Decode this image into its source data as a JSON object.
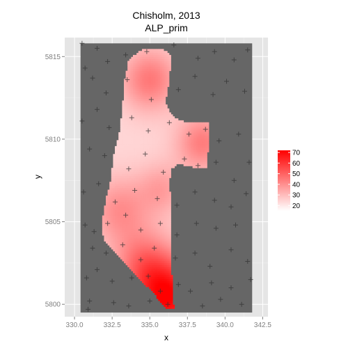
{
  "chart_data": {
    "type": "heatmap",
    "title": "Chisholm, 2013",
    "subtitle": "ALP_prim",
    "xlabel": "x",
    "ylabel": "y",
    "xlim": [
      330.0,
      342.5
    ],
    "ylim": [
      5799.5,
      5815.8
    ],
    "x_ticks": [
      330.0,
      332.5,
      335.0,
      337.5,
      340.0,
      342.5
    ],
    "x_tick_labels": [
      "330.0",
      "332.5",
      "335.0",
      "337.5",
      "340.0",
      "342.5"
    ],
    "y_ticks": [
      5800,
      5805,
      5810,
      5815
    ],
    "y_tick_labels": [
      "5800",
      "5805",
      "5810",
      "5815"
    ],
    "grid": true,
    "legend": {
      "position": "right",
      "scale_min": 15,
      "scale_max": 72,
      "breaks": [
        70,
        60,
        50,
        40,
        30,
        20
      ],
      "break_labels": [
        "70",
        "60",
        "50",
        "40",
        "30",
        "20"
      ],
      "low_color": "#ffffff",
      "high_color": "#ff0000"
    },
    "raster_background": "#666666",
    "raster_extent": {
      "x": [
        330.4,
        341.8
      ],
      "y": [
        5799.5,
        5815.8
      ]
    },
    "region_boundary": [
      [
        333.6,
        5814.8
      ],
      [
        334.0,
        5815.1
      ],
      [
        334.5,
        5815.4
      ],
      [
        335.1,
        5815.5
      ],
      [
        335.9,
        5815.4
      ],
      [
        336.4,
        5815.1
      ],
      [
        336.3,
        5813.5
      ],
      [
        336.0,
        5812.2
      ],
      [
        336.5,
        5811.4
      ],
      [
        337.1,
        5811.1
      ],
      [
        338.0,
        5811.0
      ],
      [
        338.9,
        5811.0
      ],
      [
        338.9,
        5809.8
      ],
      [
        338.8,
        5808.3
      ],
      [
        337.9,
        5808.3
      ],
      [
        336.9,
        5808.5
      ],
      [
        336.4,
        5808.2
      ],
      [
        336.3,
        5807.2
      ],
      [
        336.4,
        5806.1
      ],
      [
        336.4,
        5804.5
      ],
      [
        336.4,
        5802.8
      ],
      [
        336.5,
        5801.2
      ],
      [
        336.6,
        5799.7
      ],
      [
        336.1,
        5799.7
      ],
      [
        335.5,
        5800.4
      ],
      [
        334.8,
        5801.1
      ],
      [
        334.0,
        5801.8
      ],
      [
        333.2,
        5802.6
      ],
      [
        332.6,
        5803.2
      ],
      [
        332.0,
        5803.8
      ],
      [
        331.8,
        5804.6
      ],
      [
        331.9,
        5805.4
      ],
      [
        332.1,
        5806.4
      ],
      [
        332.4,
        5807.5
      ],
      [
        332.6,
        5809.0
      ],
      [
        333.0,
        5810.5
      ],
      [
        333.2,
        5812.0
      ],
      [
        333.3,
        5813.5
      ]
    ],
    "value_peaks": [
      {
        "x": 335.0,
        "y": 5813.6,
        "value": 45,
        "spread": 1.3
      },
      {
        "x": 338.5,
        "y": 5809.8,
        "value": 44,
        "spread": 1.2
      },
      {
        "x": 336.2,
        "y": 5800.4,
        "value": 70,
        "spread": 1.6
      },
      {
        "x": 333.0,
        "y": 5805.7,
        "value": 40,
        "spread": 1.4
      },
      {
        "x": 335.8,
        "y": 5807.0,
        "value": 36,
        "spread": 1.1
      },
      {
        "x": 334.6,
        "y": 5802.5,
        "value": 44,
        "spread": 1.4
      }
    ],
    "value_base": 24,
    "sample_points": [
      [
        330.5,
        5815.8
      ],
      [
        331.5,
        5815.5
      ],
      [
        332.2,
        5814.7
      ],
      [
        333.4,
        5815.1
      ],
      [
        334.8,
        5815.3
      ],
      [
        336.6,
        5815.7
      ],
      [
        338.2,
        5814.9
      ],
      [
        339.3,
        5815.3
      ],
      [
        340.6,
        5814.8
      ],
      [
        341.5,
        5815.4
      ],
      [
        330.7,
        5814.3
      ],
      [
        331.2,
        5813.7
      ],
      [
        332.1,
        5812.8
      ],
      [
        333.5,
        5813.6
      ],
      [
        335.1,
        5812.4
      ],
      [
        336.9,
        5813.0
      ],
      [
        338.0,
        5813.8
      ],
      [
        339.2,
        5812.7
      ],
      [
        340.1,
        5813.5
      ],
      [
        341.3,
        5812.9
      ],
      [
        330.5,
        5811.1
      ],
      [
        331.5,
        5811.8
      ],
      [
        332.3,
        5810.7
      ],
      [
        333.8,
        5811.3
      ],
      [
        334.9,
        5810.5
      ],
      [
        336.3,
        5811.0
      ],
      [
        337.6,
        5810.3
      ],
      [
        338.7,
        5810.6
      ],
      [
        339.6,
        5809.9
      ],
      [
        340.9,
        5810.3
      ],
      [
        331.0,
        5809.4
      ],
      [
        332.0,
        5809.0
      ],
      [
        333.6,
        5808.2
      ],
      [
        334.7,
        5809.1
      ],
      [
        335.9,
        5808.0
      ],
      [
        337.3,
        5808.8
      ],
      [
        338.2,
        5808.4
      ],
      [
        339.4,
        5808.6
      ],
      [
        340.6,
        5807.5
      ],
      [
        341.6,
        5808.6
      ],
      [
        330.6,
        5806.8
      ],
      [
        331.6,
        5807.3
      ],
      [
        332.7,
        5806.2
      ],
      [
        334.0,
        5806.9
      ],
      [
        335.5,
        5806.4
      ],
      [
        336.8,
        5806.0
      ],
      [
        338.0,
        5806.8
      ],
      [
        339.3,
        5806.3
      ],
      [
        340.4,
        5805.9
      ],
      [
        341.4,
        5806.7
      ],
      [
        330.7,
        5804.8
      ],
      [
        331.3,
        5804.4
      ],
      [
        332.2,
        5804.9
      ],
      [
        333.4,
        5805.4
      ],
      [
        334.4,
        5804.5
      ],
      [
        335.7,
        5804.9
      ],
      [
        336.8,
        5804.2
      ],
      [
        338.1,
        5804.9
      ],
      [
        339.4,
        5804.6
      ],
      [
        340.7,
        5804.8
      ],
      [
        331.2,
        5803.4
      ],
      [
        332.1,
        5803.1
      ],
      [
        333.2,
        5803.6
      ],
      [
        334.4,
        5802.7
      ],
      [
        335.3,
        5803.4
      ],
      [
        336.7,
        5802.8
      ],
      [
        338.0,
        5803.1
      ],
      [
        339.0,
        5802.3
      ],
      [
        340.4,
        5803.3
      ],
      [
        341.5,
        5802.6
      ],
      [
        330.8,
        5801.6
      ],
      [
        331.5,
        5802.1
      ],
      [
        332.5,
        5801.4
      ],
      [
        333.8,
        5801.6
      ],
      [
        334.9,
        5801.7
      ],
      [
        335.7,
        5800.8
      ],
      [
        336.9,
        5801.2
      ],
      [
        337.7,
        5800.8
      ],
      [
        339.1,
        5801.3
      ],
      [
        340.4,
        5801.0
      ],
      [
        331.0,
        5800.2
      ],
      [
        332.6,
        5800.1
      ],
      [
        333.6,
        5799.9
      ],
      [
        335.0,
        5800.2
      ],
      [
        336.2,
        5800.0
      ],
      [
        338.5,
        5799.9
      ],
      [
        339.7,
        5800.3
      ],
      [
        341.1,
        5800.0
      ],
      [
        341.7,
        5801.5
      ],
      [
        330.9,
        5799.7
      ]
    ]
  }
}
